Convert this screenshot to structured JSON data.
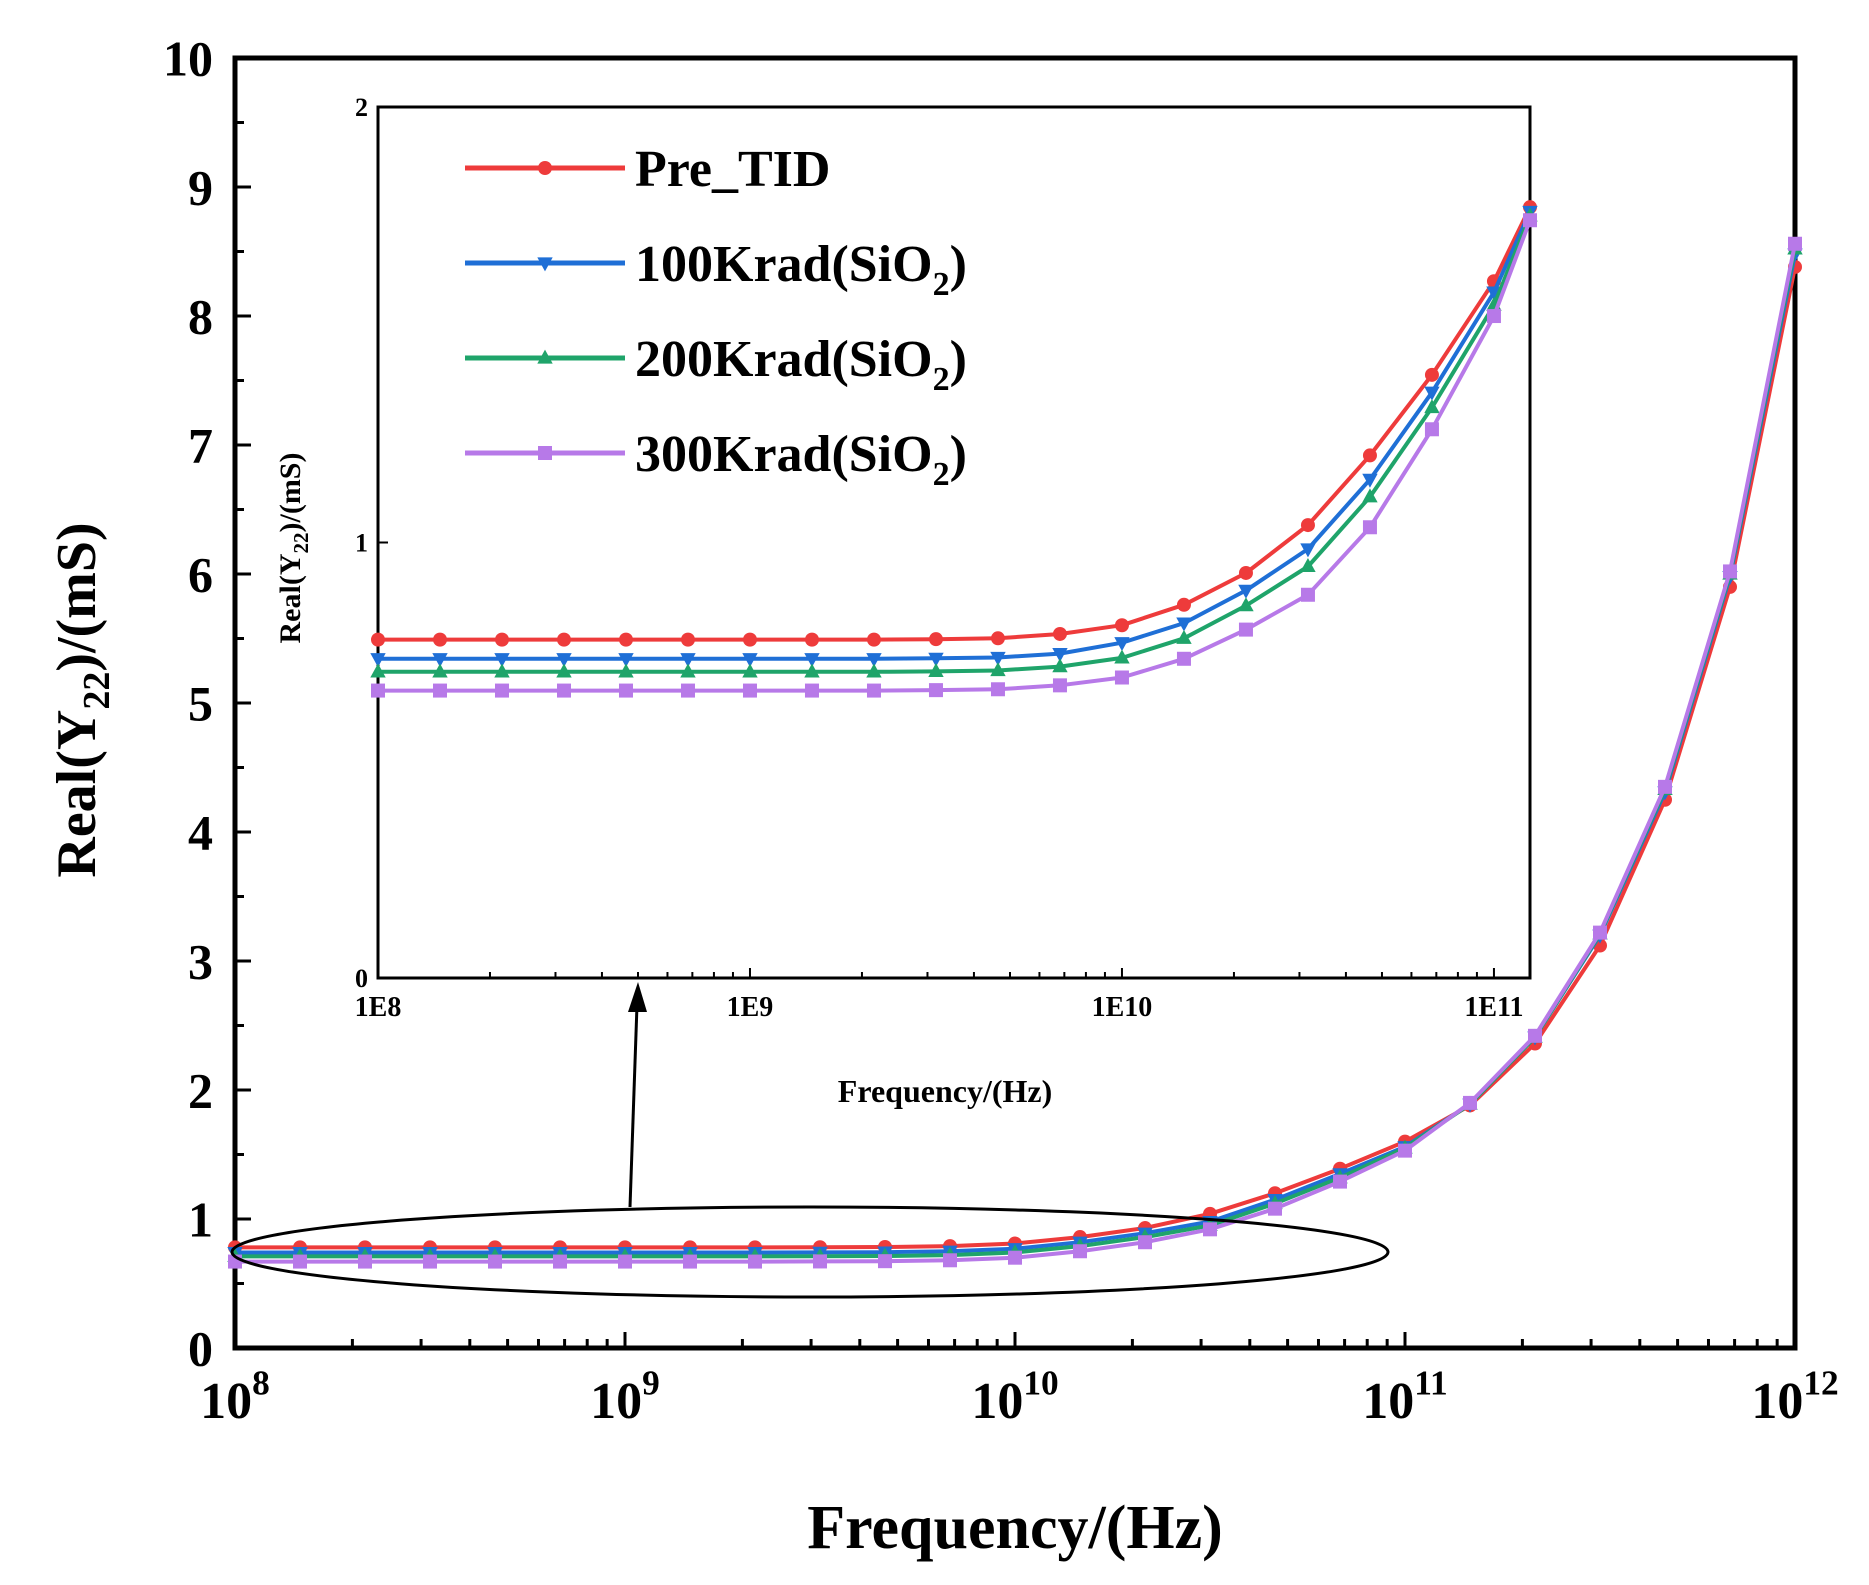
{
  "colors": {
    "pre_tid": "#ee3b3b",
    "k100": "#1f6fd6",
    "k200": "#1fa46a",
    "k300": "#b779e8"
  },
  "chart_data": [
    {
      "id": "main",
      "type": "line",
      "xscale": "log",
      "xlim": [
        100000000,
        1000000000000
      ],
      "ylim": [
        0,
        10
      ],
      "xlabel": "Frequency/(Hz)",
      "ylabel": "Real(Y22)/(mS)",
      "ylabel_parts": {
        "pre": "Real(Y",
        "sub": "22",
        "post": ")/(mS)"
      },
      "xticks": [
        {
          "value": 100000000,
          "base": "10",
          "exp": "8"
        },
        {
          "value": 1000000000,
          "base": "10",
          "exp": "9"
        },
        {
          "value": 10000000000,
          "base": "10",
          "exp": "10"
        },
        {
          "value": 100000000000,
          "base": "10",
          "exp": "11"
        },
        {
          "value": 1000000000000,
          "base": "10",
          "exp": "12"
        }
      ],
      "yticks": [
        "0",
        "1",
        "2",
        "3",
        "4",
        "5",
        "6",
        "7",
        "8",
        "9",
        "10"
      ],
      "annotation": "ellipse around the low-frequency region with arrow pointing to inset",
      "x": [
        100000000,
        146780000,
        215440000,
        316230000,
        464160000,
        681290000,
        1000000000,
        1467800000,
        2154400000,
        3162300000,
        4641600000,
        6812900000,
        10000000000,
        14678000000,
        21544000000,
        31623000000,
        46416000000,
        68129000000,
        100000000000,
        146780000000,
        215440000000,
        316230000000,
        464160000000,
        681290000000,
        1000000000000
      ],
      "series": [
        {
          "name": "Pre_TID",
          "color_key": "pre_tid",
          "marker": "circle",
          "values": [
            0.78,
            0.78,
            0.78,
            0.78,
            0.78,
            0.78,
            0.78,
            0.78,
            0.78,
            0.781,
            0.783,
            0.79,
            0.81,
            0.86,
            0.93,
            1.04,
            1.2,
            1.39,
            1.6,
            1.88,
            2.36,
            3.12,
            4.25,
            5.9,
            8.38
          ]
        },
        {
          "name": "100Krad(SiO2)",
          "color_key": "k100",
          "marker": "triangle-down",
          "values": [
            0.74,
            0.74,
            0.74,
            0.74,
            0.74,
            0.74,
            0.74,
            0.74,
            0.74,
            0.741,
            0.743,
            0.75,
            0.77,
            0.82,
            0.89,
            0.98,
            1.15,
            1.35,
            1.56,
            1.89,
            2.41,
            3.2,
            4.31,
            5.98,
            8.48
          ]
        },
        {
          "name": "200Krad(SiO2)",
          "color_key": "k200",
          "marker": "triangle-up",
          "values": [
            0.71,
            0.71,
            0.71,
            0.71,
            0.71,
            0.71,
            0.71,
            0.71,
            0.71,
            0.711,
            0.713,
            0.72,
            0.74,
            0.79,
            0.86,
            0.95,
            1.12,
            1.32,
            1.55,
            1.89,
            2.41,
            3.21,
            4.33,
            6.0,
            8.52
          ]
        },
        {
          "name": "300Krad(SiO2)",
          "color_key": "k300",
          "marker": "square",
          "values": [
            0.67,
            0.67,
            0.67,
            0.67,
            0.67,
            0.67,
            0.67,
            0.67,
            0.67,
            0.671,
            0.673,
            0.68,
            0.7,
            0.75,
            0.82,
            0.92,
            1.08,
            1.29,
            1.53,
            1.9,
            2.42,
            3.22,
            4.35,
            6.02,
            8.56
          ]
        }
      ]
    },
    {
      "id": "inset",
      "type": "line",
      "xscale": "log",
      "xlim": [
        100000000,
        125000000000
      ],
      "ylim": [
        0,
        2
      ],
      "xlabel": "Frequency/(Hz)",
      "ylabel": "Real(Y22)/(mS)",
      "ylabel_parts": {
        "pre": "Real(Y",
        "sub": "22",
        "post": ")/(mS)"
      },
      "xticks": [
        {
          "value": 100000000,
          "label": "1E8"
        },
        {
          "value": 1000000000,
          "label": "1E9"
        },
        {
          "value": 10000000000,
          "label": "1E10"
        },
        {
          "value": 100000000000,
          "label": "1E11"
        }
      ],
      "yticks": [
        "0",
        "1",
        "2"
      ],
      "x": [
        100000000,
        146780000,
        215440000,
        316230000,
        464160000,
        681290000,
        1000000000,
        1467800000,
        2154400000,
        3162300000,
        4641600000,
        6812900000,
        10000000000,
        14678000000,
        21544000000,
        31623000000,
        46416000000,
        68129000000,
        100000000000,
        125000000000
      ],
      "series": [
        {
          "name": "Pre_TID",
          "color_key": "pre_tid",
          "marker": "circle",
          "values": [
            0.777,
            0.777,
            0.777,
            0.777,
            0.777,
            0.777,
            0.777,
            0.777,
            0.777,
            0.778,
            0.78,
            0.79,
            0.81,
            0.857,
            0.93,
            1.04,
            1.2,
            1.385,
            1.6,
            1.77
          ]
        },
        {
          "name": "100Krad(SiO2)",
          "color_key": "k100",
          "marker": "triangle-down",
          "values": [
            0.733,
            0.733,
            0.733,
            0.733,
            0.733,
            0.733,
            0.733,
            0.733,
            0.733,
            0.734,
            0.736,
            0.745,
            0.77,
            0.815,
            0.89,
            0.985,
            1.145,
            1.345,
            1.575,
            1.76
          ]
        },
        {
          "name": "200Krad(SiO2)",
          "color_key": "k200",
          "marker": "triangle-up",
          "values": [
            0.703,
            0.703,
            0.703,
            0.703,
            0.703,
            0.703,
            0.703,
            0.703,
            0.703,
            0.704,
            0.706,
            0.715,
            0.735,
            0.78,
            0.855,
            0.945,
            1.105,
            1.31,
            1.545,
            1.75
          ]
        },
        {
          "name": "300Krad(SiO2)",
          "color_key": "k300",
          "marker": "square",
          "values": [
            0.66,
            0.66,
            0.66,
            0.66,
            0.66,
            0.66,
            0.66,
            0.66,
            0.66,
            0.661,
            0.663,
            0.672,
            0.69,
            0.733,
            0.8,
            0.88,
            1.035,
            1.26,
            1.52,
            1.74
          ]
        }
      ],
      "legend": {
        "placement": "top-left",
        "entries": [
          {
            "text": "Pre_TID",
            "sub": "",
            "post": ""
          },
          {
            "text": "100Krad(SiO",
            "sub": "2",
            "post": ")"
          },
          {
            "text": "200Krad(SiO",
            "sub": "2",
            "post": ")"
          },
          {
            "text": "300Krad(SiO",
            "sub": "2",
            "post": ")"
          }
        ]
      }
    }
  ]
}
